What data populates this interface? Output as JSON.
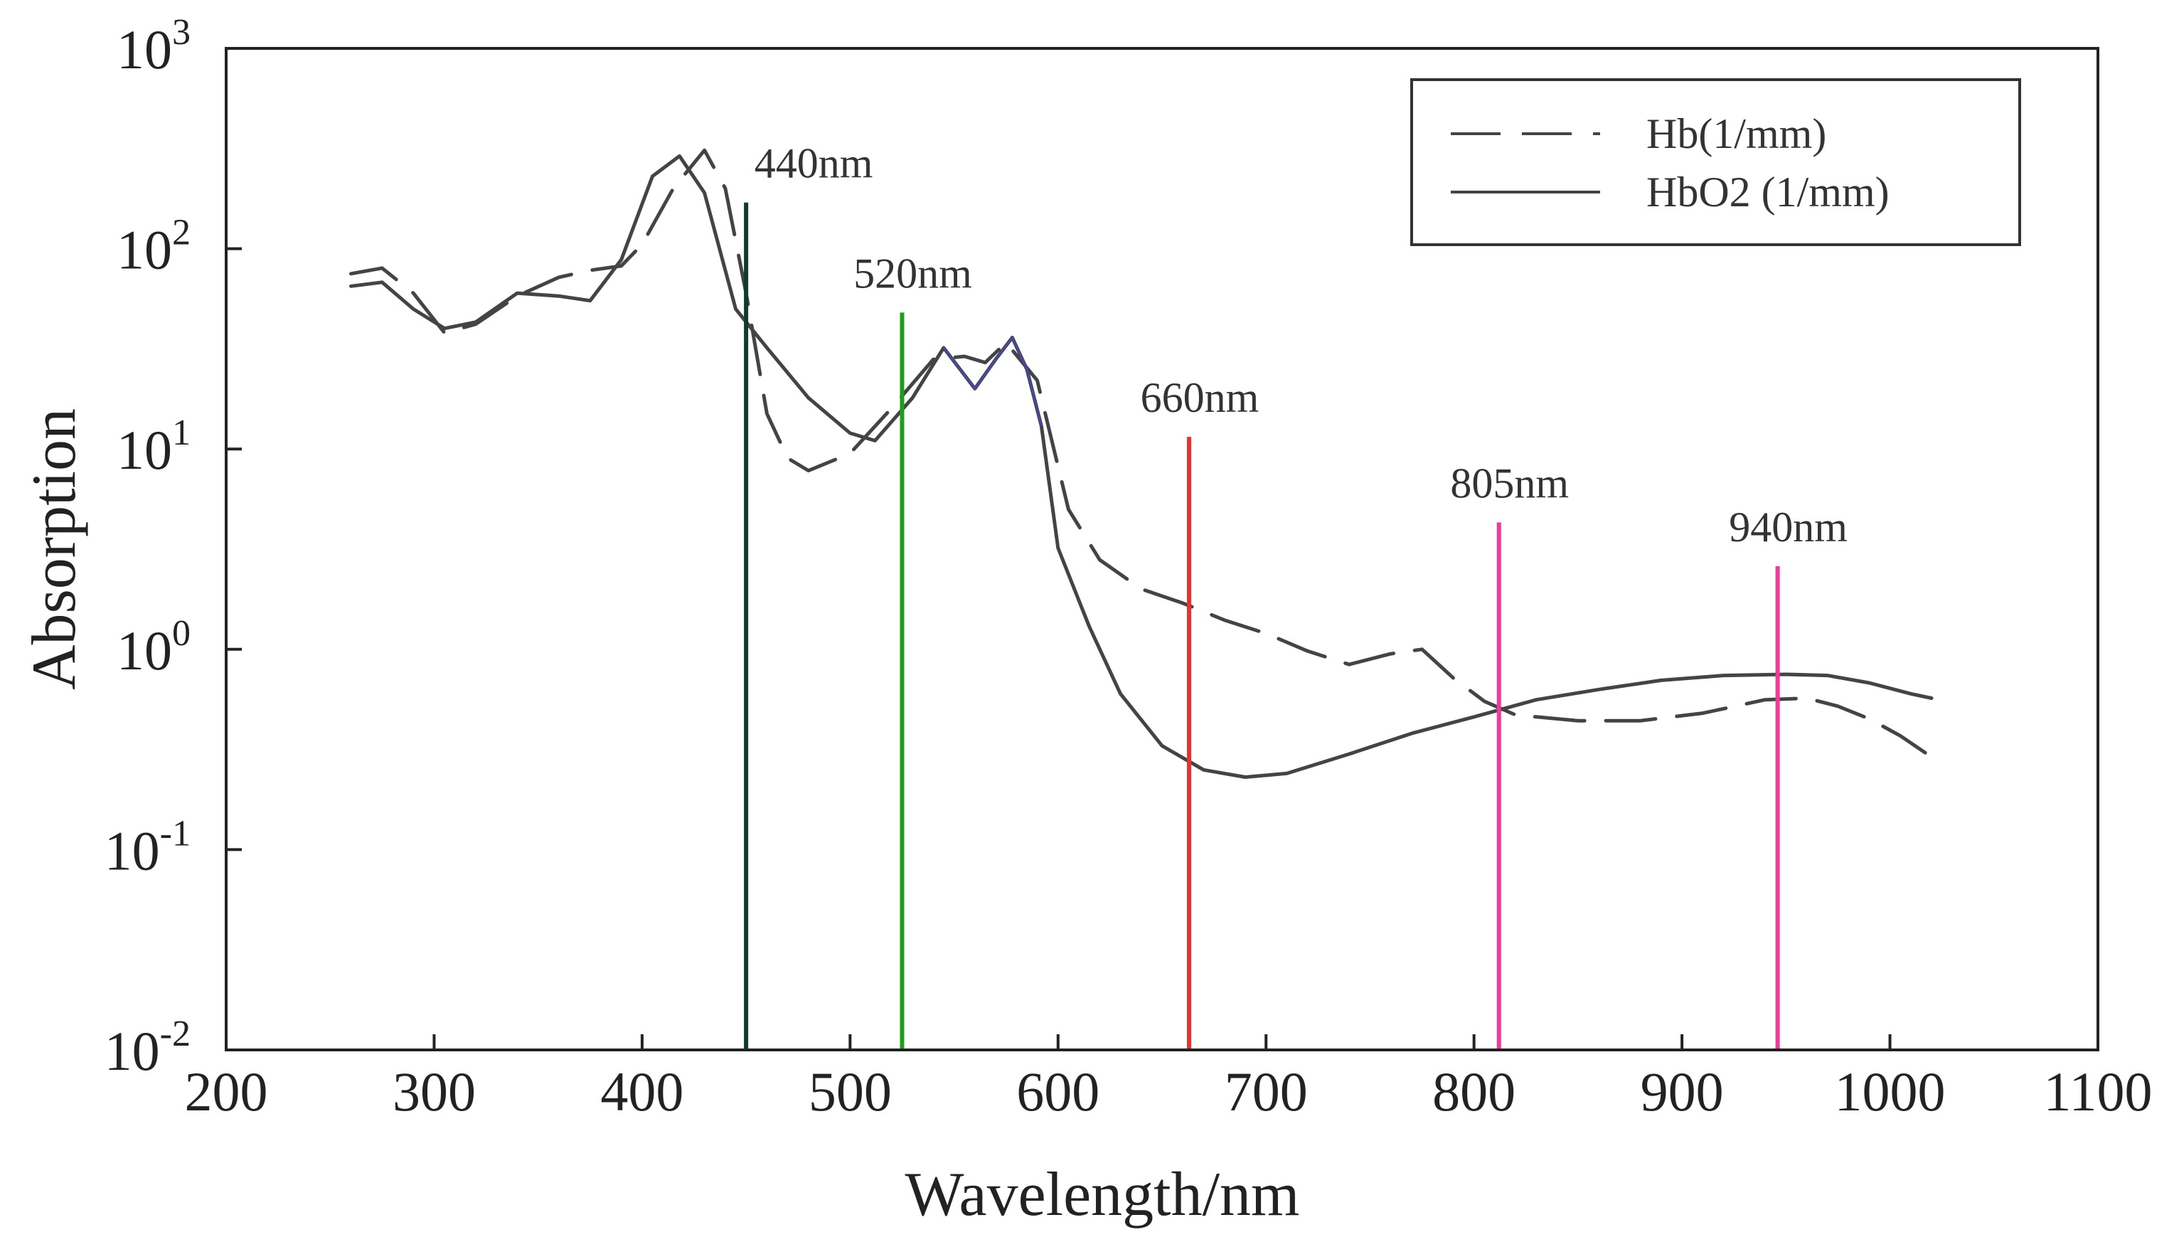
{
  "chart_data": {
    "type": "line",
    "title": "",
    "xlabel": "Wavelength/nm",
    "ylabel": "Absorption",
    "xlim": [
      200,
      1100
    ],
    "ylim_log10": [
      -2,
      3
    ],
    "y_scale": "log",
    "grid": false,
    "x_ticks": [
      {
        "value": 200,
        "label": "200"
      },
      {
        "value": 300,
        "label": "300"
      },
      {
        "value": 400,
        "label": "400"
      },
      {
        "value": 500,
        "label": "500"
      },
      {
        "value": 600,
        "label": "600"
      },
      {
        "value": 700,
        "label": "700"
      },
      {
        "value": 800,
        "label": "800"
      },
      {
        "value": 900,
        "label": "900"
      },
      {
        "value": 1000,
        "label": "1000"
      },
      {
        "value": 1100,
        "label": "1100"
      }
    ],
    "y_ticks": [
      {
        "exp": -2,
        "base": "10",
        "sup": "-2"
      },
      {
        "exp": -1,
        "base": "10",
        "sup": "-1"
      },
      {
        "exp": 0,
        "base": "10",
        "sup": "0"
      },
      {
        "exp": 1,
        "base": "10",
        "sup": "1"
      },
      {
        "exp": 2,
        "base": "10",
        "sup": "2"
      },
      {
        "exp": 3,
        "base": "10",
        "sup": "3"
      }
    ],
    "legend": {
      "position": "top-right",
      "entries": [
        {
          "label": "Hb(1/mm)",
          "style": "dashed"
        },
        {
          "label": "HbO2 (1/mm)",
          "style": "solid"
        }
      ]
    },
    "series": [
      {
        "name": "Hb(1/mm)",
        "style": "dashed",
        "color": "#444444",
        "points": [
          [
            260,
            75
          ],
          [
            275,
            80
          ],
          [
            290,
            60
          ],
          [
            305,
            38
          ],
          [
            320,
            42
          ],
          [
            340,
            58
          ],
          [
            360,
            72
          ],
          [
            375,
            78
          ],
          [
            390,
            82
          ],
          [
            400,
            105
          ],
          [
            415,
            200
          ],
          [
            430,
            310
          ],
          [
            440,
            200
          ],
          [
            450,
            60
          ],
          [
            460,
            15
          ],
          [
            470,
            9
          ],
          [
            480,
            7.8
          ],
          [
            500,
            9.5
          ],
          [
            520,
            16
          ],
          [
            540,
            28
          ],
          [
            555,
            29
          ],
          [
            565,
            27
          ],
          [
            575,
            34
          ],
          [
            590,
            22
          ],
          [
            605,
            5
          ],
          [
            620,
            2.8
          ],
          [
            640,
            2.0
          ],
          [
            660,
            1.7
          ],
          [
            680,
            1.4
          ],
          [
            700,
            1.2
          ],
          [
            720,
            0.98
          ],
          [
            740,
            0.84
          ],
          [
            760,
            0.95
          ],
          [
            775,
            1.0
          ],
          [
            790,
            0.72
          ],
          [
            805,
            0.55
          ],
          [
            820,
            0.47
          ],
          [
            850,
            0.44
          ],
          [
            880,
            0.44
          ],
          [
            910,
            0.48
          ],
          [
            940,
            0.56
          ],
          [
            960,
            0.57
          ],
          [
            975,
            0.52
          ],
          [
            990,
            0.45
          ],
          [
            1005,
            0.37
          ],
          [
            1020,
            0.29
          ]
        ]
      },
      {
        "name": "HbO2 (1/mm)",
        "style": "solid",
        "color": "#444444",
        "points": [
          [
            260,
            65
          ],
          [
            275,
            68
          ],
          [
            290,
            50
          ],
          [
            305,
            40
          ],
          [
            320,
            43
          ],
          [
            340,
            60
          ],
          [
            360,
            58
          ],
          [
            375,
            55
          ],
          [
            390,
            88
          ],
          [
            405,
            230
          ],
          [
            418,
            290
          ],
          [
            430,
            190
          ],
          [
            445,
            50
          ],
          [
            460,
            32
          ],
          [
            480,
            18
          ],
          [
            500,
            12
          ],
          [
            512,
            11
          ],
          [
            530,
            18
          ],
          [
            545,
            32
          ],
          [
            560,
            20
          ],
          [
            570,
            28
          ],
          [
            578,
            36
          ],
          [
            585,
            25
          ],
          [
            592,
            13
          ],
          [
            600,
            3.2
          ],
          [
            615,
            1.3
          ],
          [
            630,
            0.6
          ],
          [
            650,
            0.33
          ],
          [
            670,
            0.25
          ],
          [
            690,
            0.23
          ],
          [
            710,
            0.24
          ],
          [
            740,
            0.3
          ],
          [
            770,
            0.38
          ],
          [
            800,
            0.46
          ],
          [
            830,
            0.56
          ],
          [
            860,
            0.63
          ],
          [
            890,
            0.7
          ],
          [
            920,
            0.74
          ],
          [
            950,
            0.75
          ],
          [
            970,
            0.74
          ],
          [
            990,
            0.68
          ],
          [
            1010,
            0.6
          ],
          [
            1020,
            0.57
          ]
        ]
      }
    ],
    "markers": [
      {
        "x": 450,
        "top": 170,
        "label": "440nm",
        "color": "#0e3b2a"
      },
      {
        "x": 525,
        "top": 48,
        "label": "520nm",
        "color": "#1e9e1e"
      },
      {
        "x": 663,
        "top": 11.5,
        "label": "660nm",
        "color": "#e83232"
      },
      {
        "x": 812,
        "top": 4.3,
        "label": "805nm",
        "color": "#f23a9a"
      },
      {
        "x": 946,
        "top": 2.6,
        "label": "940nm",
        "color": "#f23a9a"
      }
    ],
    "highlight_color": "#4a4aff"
  }
}
